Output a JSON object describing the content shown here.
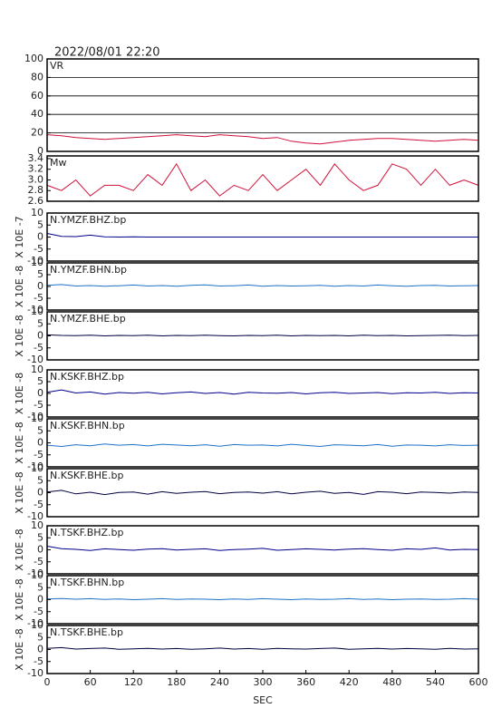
{
  "chart_data": [
    {
      "type": "line",
      "title": "2022/08/01 22:20",
      "grid": true,
      "xlim": [
        0,
        600
      ],
      "ylim": [
        0,
        100
      ],
      "yticks": [
        0,
        20,
        40,
        60,
        80,
        100
      ],
      "x": [
        0,
        20,
        40,
        60,
        80,
        100,
        120,
        140,
        160,
        180,
        200,
        220,
        240,
        260,
        280,
        300,
        320,
        340,
        360,
        380,
        400,
        420,
        440,
        460,
        480,
        500,
        520,
        540,
        560,
        580,
        600
      ],
      "series": [
        {
          "name": "VR",
          "color": "#d0103a",
          "values": [
            18,
            17,
            15,
            14,
            13,
            14,
            15,
            16,
            17,
            18,
            17,
            16,
            18,
            17,
            16,
            14,
            15,
            11,
            9,
            8,
            10,
            12,
            13,
            14,
            14,
            13,
            12,
            11,
            12,
            13,
            12
          ]
        }
      ]
    },
    {
      "type": "line",
      "xlim": [
        0,
        600
      ],
      "ylim": [
        2.6,
        3.45
      ],
      "yticks": [
        2.6,
        2.8,
        {
          "value": 3,
          "label": "3.0"
        },
        3.2,
        3.4
      ],
      "x": [
        0,
        20,
        40,
        60,
        80,
        100,
        120,
        140,
        160,
        180,
        200,
        220,
        240,
        260,
        280,
        300,
        320,
        340,
        360,
        380,
        400,
        420,
        440,
        460,
        480,
        500,
        520,
        540,
        560,
        580,
        600
      ],
      "series": [
        {
          "name": "Mw",
          "color": "#d0103a",
          "values": [
            2.9,
            2.8,
            3.0,
            2.7,
            2.9,
            2.9,
            2.8,
            3.1,
            2.9,
            3.3,
            2.8,
            3.0,
            2.7,
            2.9,
            2.8,
            3.1,
            2.8,
            3.0,
            3.2,
            2.9,
            3.3,
            3.0,
            2.8,
            2.9,
            3.3,
            3.2,
            2.9,
            3.2,
            2.9,
            3.0,
            2.9
          ]
        }
      ]
    },
    {
      "type": "line",
      "ylabel": "X 10E -7",
      "xlim": [
        0,
        600
      ],
      "ylim": [
        -10,
        10
      ],
      "yticks": [
        -10,
        -5,
        0,
        5,
        10
      ],
      "x": [
        0,
        20,
        40,
        60,
        80,
        100,
        120,
        140,
        160,
        180,
        200,
        220,
        240,
        260,
        280,
        300,
        320,
        340,
        360,
        380,
        400,
        420,
        440,
        460,
        480,
        500,
        520,
        540,
        560,
        580,
        600
      ],
      "series": [
        {
          "name": "N.YMZF.BHZ.bp",
          "color": "#00008b",
          "values": [
            1.5,
            0.3,
            0.2,
            0.8,
            0.1,
            0,
            0.1,
            0,
            0,
            0,
            0,
            0,
            0,
            0,
            0,
            0,
            0,
            0,
            0,
            0,
            0,
            0,
            0,
            0,
            0,
            0,
            0,
            0,
            0,
            0,
            0
          ]
        }
      ]
    },
    {
      "type": "line",
      "ylabel": "X 10E -8",
      "xlim": [
        0,
        600
      ],
      "ylim": [
        -10,
        10
      ],
      "yticks": [
        -10,
        -5,
        0,
        5,
        10
      ],
      "x": [
        0,
        20,
        40,
        60,
        80,
        100,
        120,
        140,
        160,
        180,
        200,
        220,
        240,
        260,
        280,
        300,
        320,
        340,
        360,
        380,
        400,
        420,
        440,
        460,
        480,
        500,
        520,
        540,
        560,
        580,
        600
      ],
      "series": [
        {
          "name": "N.YMZF.BHN.bp",
          "color": "#1e73c8",
          "values": [
            0.5,
            0.8,
            0.2,
            0.4,
            0.1,
            0.3,
            0.6,
            0.2,
            0.4,
            0.1,
            0.5,
            0.7,
            0.2,
            0.3,
            0.6,
            0.1,
            0.4,
            0.2,
            0.3,
            0.5,
            0.1,
            0.4,
            0.2,
            0.6,
            0.3,
            0.1,
            0.4,
            0.5,
            0.2,
            0.3,
            0.4
          ]
        }
      ]
    },
    {
      "type": "line",
      "ylabel": "X 10E -8",
      "xlim": [
        0,
        600
      ],
      "ylim": [
        -10,
        10
      ],
      "yticks": [
        -10,
        -5,
        0,
        5,
        10
      ],
      "x": [
        0,
        20,
        40,
        60,
        80,
        100,
        120,
        140,
        160,
        180,
        200,
        220,
        240,
        260,
        280,
        300,
        320,
        340,
        360,
        380,
        400,
        420,
        440,
        460,
        480,
        500,
        520,
        540,
        560,
        580,
        600
      ],
      "series": [
        {
          "name": "N.YMZF.BHE.bp",
          "color": "#000040",
          "values": [
            0.4,
            0.2,
            0.1,
            0.3,
            0,
            0.2,
            0.1,
            0.3,
            0,
            0.2,
            0.1,
            0.3,
            0.1,
            0,
            0.2,
            0.1,
            0.3,
            0,
            0.2,
            0.1,
            0.2,
            0,
            0.3,
            0.1,
            0.2,
            0,
            0.1,
            0.2,
            0.3,
            0.1,
            0.2
          ]
        }
      ]
    },
    {
      "type": "line",
      "ylabel": "X 10E -8",
      "xlim": [
        0,
        600
      ],
      "ylim": [
        -10,
        10
      ],
      "yticks": [
        -10,
        -5,
        0,
        5,
        10
      ],
      "x": [
        0,
        20,
        40,
        60,
        80,
        100,
        120,
        140,
        160,
        180,
        200,
        220,
        240,
        260,
        280,
        300,
        320,
        340,
        360,
        380,
        400,
        420,
        440,
        460,
        480,
        500,
        520,
        540,
        560,
        580,
        600
      ],
      "series": [
        {
          "name": "N.KSKF.BHZ.bp",
          "color": "#00008b",
          "values": [
            0.5,
            1.5,
            0.2,
            0.6,
            -0.3,
            0.4,
            0.1,
            0.5,
            -0.2,
            0.3,
            0.6,
            0,
            0.4,
            -0.3,
            0.5,
            0.2,
            0.1,
            0.4,
            -0.2,
            0.3,
            0.5,
            0,
            0.2,
            0.4,
            -0.1,
            0.3,
            0.2,
            0.5,
            0,
            0.3,
            0.2
          ]
        }
      ]
    },
    {
      "type": "line",
      "ylabel": "X 10E -8",
      "xlim": [
        0,
        600
      ],
      "ylim": [
        -10,
        10
      ],
      "yticks": [
        -10,
        -5,
        0,
        5,
        10
      ],
      "x": [
        0,
        20,
        40,
        60,
        80,
        100,
        120,
        140,
        160,
        180,
        200,
        220,
        240,
        260,
        280,
        300,
        320,
        340,
        360,
        380,
        400,
        420,
        440,
        460,
        480,
        500,
        520,
        540,
        560,
        580,
        600
      ],
      "series": [
        {
          "name": "N.KSKF.BHN.bp",
          "color": "#1e73c8",
          "values": [
            -1,
            -1.5,
            -0.8,
            -1.2,
            -0.5,
            -1,
            -0.7,
            -1.3,
            -0.6,
            -0.9,
            -1.2,
            -0.8,
            -1.4,
            -0.7,
            -1,
            -0.9,
            -1.3,
            -0.6,
            -1.1,
            -1.5,
            -0.8,
            -1,
            -1.2,
            -0.7,
            -1.4,
            -0.9,
            -1,
            -1.3,
            -0.8,
            -1.1,
            -1
          ]
        }
      ]
    },
    {
      "type": "line",
      "ylabel": "X 10E -8",
      "xlim": [
        0,
        600
      ],
      "ylim": [
        -10,
        10
      ],
      "yticks": [
        -10,
        -5,
        0,
        5,
        10
      ],
      "x": [
        0,
        20,
        40,
        60,
        80,
        100,
        120,
        140,
        160,
        180,
        200,
        220,
        240,
        260,
        280,
        300,
        320,
        340,
        360,
        380,
        400,
        420,
        440,
        460,
        480,
        500,
        520,
        540,
        560,
        580,
        600
      ],
      "series": [
        {
          "name": "N.KSKF.BHE.bp",
          "color": "#000040",
          "values": [
            0.3,
            1,
            -0.5,
            0.2,
            -0.8,
            0.1,
            0.3,
            -0.6,
            0.4,
            -0.3,
            0.2,
            0.5,
            -0.4,
            0.1,
            0.3,
            -0.2,
            0.4,
            -0.5,
            0.2,
            0.6,
            -0.3,
            0.1,
            -0.7,
            0.4,
            0.2,
            -0.4,
            0.3,
            0.1,
            -0.2,
            0.3,
            0.1
          ]
        }
      ]
    },
    {
      "type": "line",
      "ylabel": "X 10E -8",
      "xlim": [
        0,
        600
      ],
      "ylim": [
        -10,
        10
      ],
      "yticks": [
        -10,
        -5,
        0,
        5,
        10
      ],
      "x": [
        0,
        20,
        40,
        60,
        80,
        100,
        120,
        140,
        160,
        180,
        200,
        220,
        240,
        260,
        280,
        300,
        320,
        340,
        360,
        380,
        400,
        420,
        440,
        460,
        480,
        500,
        520,
        540,
        560,
        580,
        600
      ],
      "series": [
        {
          "name": "N.TSKF.BHZ.bp",
          "color": "#00008b",
          "values": [
            1.5,
            0.5,
            0.2,
            -0.3,
            0.4,
            0.1,
            -0.2,
            0.3,
            0.5,
            -0.1,
            0.2,
            0.4,
            -0.3,
            0.1,
            0.3,
            0.6,
            -0.2,
            0.1,
            0.4,
            0.2,
            -0.1,
            0.3,
            0.5,
            0.1,
            -0.2,
            0.4,
            0.2,
            0.8,
            -0.1,
            0.2,
            0.1
          ]
        }
      ]
    },
    {
      "type": "line",
      "ylabel": "X 10E -8",
      "xlim": [
        0,
        600
      ],
      "ylim": [
        -10,
        10
      ],
      "yticks": [
        -10,
        -5,
        0,
        5,
        10
      ],
      "x": [
        0,
        20,
        40,
        60,
        80,
        100,
        120,
        140,
        160,
        180,
        200,
        220,
        240,
        260,
        280,
        300,
        320,
        340,
        360,
        380,
        400,
        420,
        440,
        460,
        480,
        500,
        520,
        540,
        560,
        580,
        600
      ],
      "series": [
        {
          "name": "N.TSKF.BHN.bp",
          "color": "#1e73c8",
          "values": [
            0.3,
            0.5,
            0.2,
            0.4,
            0.1,
            0.3,
            0,
            0.2,
            0.4,
            0.1,
            0.3,
            0.2,
            0,
            0.3,
            0.1,
            0.4,
            0.2,
            0,
            0.3,
            0.1,
            0.2,
            0.4,
            0.1,
            0.3,
            0,
            0.2,
            0.3,
            0.1,
            0.2,
            0.4,
            0.2
          ]
        }
      ]
    },
    {
      "type": "line",
      "ylabel": "X 10E -8",
      "xlabel": "SEC",
      "xlim": [
        0,
        600
      ],
      "ylim": [
        -10,
        10
      ],
      "yticks": [
        -10,
        -5,
        0,
        5,
        10
      ],
      "xticks": [
        0,
        60,
        120,
        180,
        240,
        300,
        360,
        420,
        480,
        540,
        600
      ],
      "x": [
        0,
        20,
        40,
        60,
        80,
        100,
        120,
        140,
        160,
        180,
        200,
        220,
        240,
        260,
        280,
        300,
        320,
        340,
        360,
        380,
        400,
        420,
        440,
        460,
        480,
        500,
        520,
        540,
        560,
        580,
        600
      ],
      "series": [
        {
          "name": "N.TSKF.BHE.bp",
          "color": "#000040",
          "values": [
            0.5,
            0.8,
            0.2,
            0.4,
            0.6,
            0.1,
            0.3,
            0.5,
            0.2,
            0.4,
            0.1,
            0.3,
            0.6,
            0.2,
            0.4,
            0.1,
            0.5,
            0.3,
            0.2,
            0.4,
            0.6,
            0.1,
            0.3,
            0.5,
            0.2,
            0.4,
            0.3,
            0.1,
            0.5,
            0.2,
            0.3
          ]
        }
      ]
    }
  ]
}
